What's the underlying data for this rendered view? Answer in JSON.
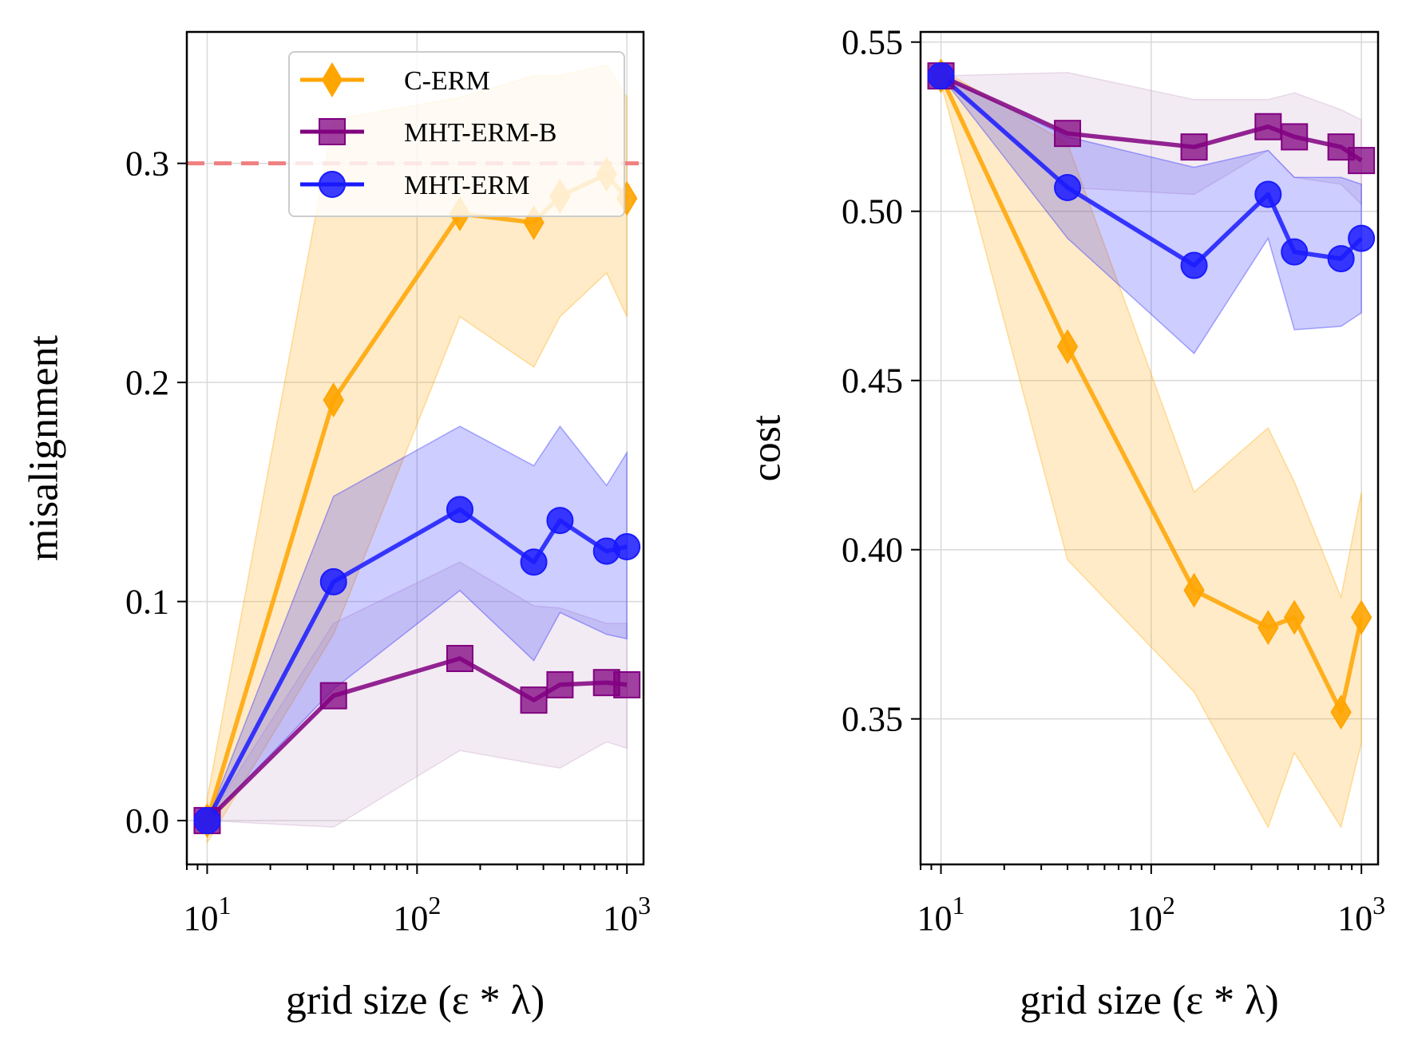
{
  "chart_data": [
    {
      "type": "line",
      "panel": "left",
      "xlabel": "grid size (ε * λ)",
      "ylabel": "misalignment",
      "xscale": "log",
      "xlim": [
        8,
        1200
      ],
      "ylim": [
        -0.02,
        0.36
      ],
      "xticks": [
        10,
        100,
        1000
      ],
      "yticks": [
        0.0,
        0.1,
        0.2,
        0.3
      ],
      "ytick_labels": [
        "0.0",
        "0.1",
        "0.2",
        "0.3"
      ],
      "reference_line": {
        "y": 0.3,
        "color": "#f08080",
        "style": "dashed"
      },
      "legend": {
        "position": "top-right",
        "entries": [
          "C-ERM",
          "MHT-ERM-B",
          "MHT-ERM"
        ]
      },
      "x": [
        10,
        40,
        160,
        360,
        480,
        800,
        1000
      ],
      "series": [
        {
          "name": "C-ERM",
          "color": "#ffa500",
          "marker": "diamond",
          "values": [
            0.0,
            0.192,
            0.277,
            0.273,
            0.285,
            0.295,
            0.284
          ],
          "lower": [
            -0.01,
            0.085,
            0.23,
            0.207,
            0.23,
            0.25,
            0.23
          ],
          "upper": [
            0.01,
            0.32,
            0.33,
            0.34,
            0.34,
            0.345,
            0.33
          ]
        },
        {
          "name": "MHT-ERM-B",
          "color": "#800080",
          "marker": "square",
          "values": [
            0.0,
            0.057,
            0.074,
            0.055,
            0.062,
            0.063,
            0.062
          ],
          "lower": [
            0.0,
            -0.003,
            0.032,
            0.026,
            0.024,
            0.036,
            0.033
          ],
          "upper": [
            0.0,
            0.09,
            0.118,
            0.098,
            0.097,
            0.09,
            0.09
          ],
          "band_color": "#c8a2c8"
        },
        {
          "name": "MHT-ERM",
          "color": "#1a1aff",
          "marker": "circle",
          "values": [
            0.0,
            0.109,
            0.142,
            0.118,
            0.137,
            0.123,
            0.125
          ],
          "lower": [
            0.0,
            0.06,
            0.105,
            0.073,
            0.095,
            0.085,
            0.083
          ],
          "upper": [
            0.0,
            0.148,
            0.18,
            0.162,
            0.18,
            0.153,
            0.168
          ]
        }
      ]
    },
    {
      "type": "line",
      "panel": "right",
      "xlabel": "grid size (ε * λ)",
      "ylabel": "cost",
      "xscale": "log",
      "xlim": [
        8,
        1200
      ],
      "ylim": [
        0.307,
        0.553
      ],
      "xticks": [
        10,
        100,
        1000
      ],
      "yticks": [
        0.35,
        0.4,
        0.45,
        0.5,
        0.55
      ],
      "ytick_labels": [
        "0.35",
        "0.40",
        "0.45",
        "0.50",
        "0.55"
      ],
      "x": [
        10,
        40,
        160,
        360,
        480,
        800,
        1000
      ],
      "series": [
        {
          "name": "C-ERM",
          "color": "#ffa500",
          "marker": "diamond",
          "values": [
            0.54,
            0.46,
            0.388,
            0.377,
            0.38,
            0.352,
            0.38
          ],
          "lower": [
            0.538,
            0.397,
            0.358,
            0.318,
            0.34,
            0.318,
            0.343
          ],
          "upper": [
            0.542,
            0.52,
            0.417,
            0.436,
            0.42,
            0.386,
            0.417
          ]
        },
        {
          "name": "MHT-ERM-B",
          "color": "#800080",
          "marker": "square",
          "values": [
            0.54,
            0.523,
            0.519,
            0.525,
            0.522,
            0.519,
            0.515
          ],
          "lower": [
            0.54,
            0.507,
            0.505,
            0.518,
            0.51,
            0.508,
            0.502
          ],
          "upper": [
            0.54,
            0.541,
            0.533,
            0.533,
            0.535,
            0.53,
            0.527
          ],
          "band_color": "#c8a2c8"
        },
        {
          "name": "MHT-ERM",
          "color": "#1a1aff",
          "marker": "circle",
          "values": [
            0.54,
            0.507,
            0.484,
            0.505,
            0.488,
            0.486,
            0.492
          ],
          "lower": [
            0.54,
            0.492,
            0.458,
            0.492,
            0.465,
            0.466,
            0.47
          ],
          "upper": [
            0.54,
            0.522,
            0.513,
            0.518,
            0.51,
            0.51,
            0.508
          ]
        }
      ]
    }
  ]
}
